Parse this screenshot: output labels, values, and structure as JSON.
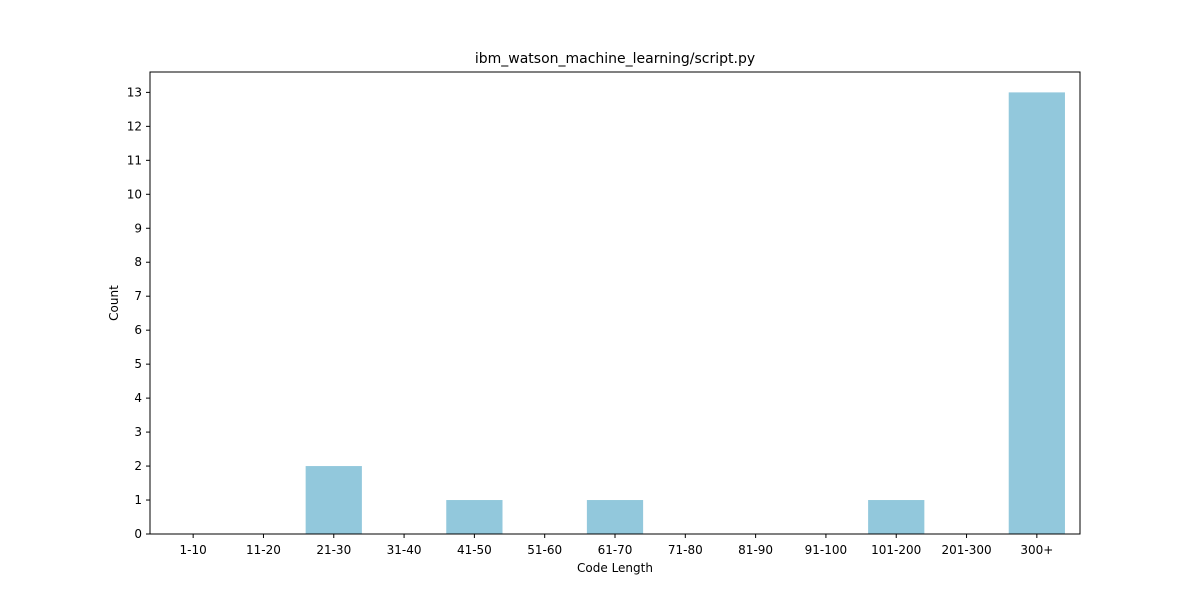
{
  "chart_data": {
    "type": "bar",
    "title": "ibm_watson_machine_learning/script.py",
    "xlabel": "Code Length",
    "ylabel": "Count",
    "categories": [
      "1-10",
      "11-20",
      "21-30",
      "31-40",
      "41-50",
      "51-60",
      "61-70",
      "71-80",
      "81-90",
      "91-100",
      "101-200",
      "201-300",
      "300+"
    ],
    "values": [
      0,
      0,
      2,
      0,
      1,
      0,
      1,
      0,
      0,
      0,
      1,
      0,
      13
    ],
    "yticks": [
      0,
      1,
      2,
      3,
      4,
      5,
      6,
      7,
      8,
      9,
      10,
      11,
      12,
      13
    ],
    "ylim": [
      0,
      13.6
    ],
    "grid": false,
    "bar_color": "#92c8dc"
  }
}
